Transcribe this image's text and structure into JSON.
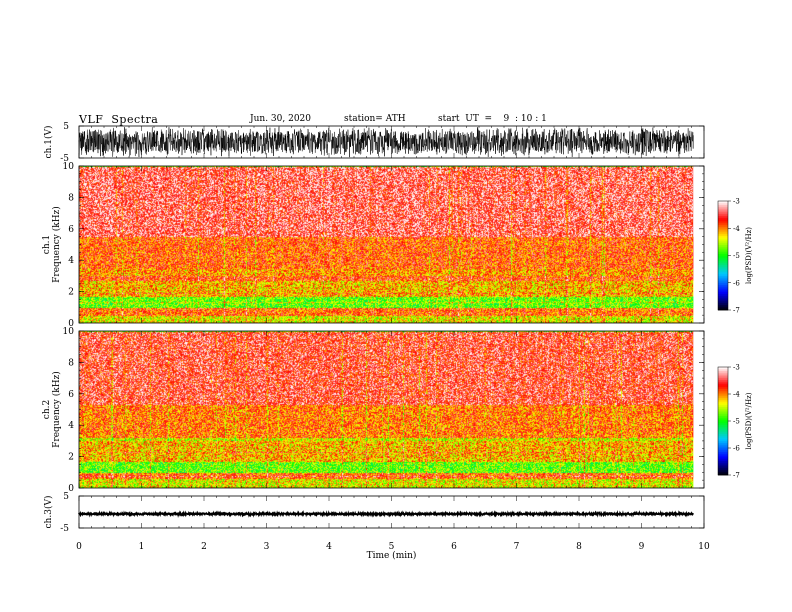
{
  "header": {
    "title": "VLF  Spectra",
    "date": "Jun. 30, 2020",
    "station": "station= ATH",
    "start": "start  UT  =    9  : 10 : 1"
  },
  "colors": {
    "spectrogram_base": "#ff1a1a",
    "waveform": "#000000",
    "axis": "#000000"
  },
  "chart_data": [
    {
      "type": "line",
      "id": "ch1-waveform",
      "ylabel": "ch.1(V)",
      "ylim": [
        -5,
        5
      ],
      "yticks": [
        "5",
        "-5"
      ],
      "xlim": [
        0,
        10
      ],
      "note_values": "dense noise waveform filling nearly the full range",
      "amplitude_fraction": 0.95,
      "duration_min": 9.83
    },
    {
      "type": "heatmap",
      "id": "ch1-spectrogram",
      "channel_label": "ch.1",
      "ylabel": "Frequency  (kHz)",
      "ylim": [
        0,
        10
      ],
      "yticks": [
        "0",
        "2",
        "4",
        "6",
        "8",
        "10"
      ],
      "xlim": [
        0,
        10
      ],
      "duration_min": 9.83,
      "colorbar": {
        "label": "log(PSD)(V²/Hz)",
        "range": [
          -7,
          -3
        ],
        "ticks": [
          "-3",
          "-4",
          "-5",
          "-6",
          "-7"
        ],
        "colors": [
          "#000000",
          "#0000ff",
          "#00c8ff",
          "#00ff00",
          "#ffff00",
          "#ff0000",
          "#ffffff"
        ]
      },
      "bands": [
        {
          "f0": 0,
          "f1": 0.5,
          "level": -4.5
        },
        {
          "f0": 0.5,
          "f1": 1.0,
          "level": -4.0
        },
        {
          "f0": 1.0,
          "f1": 1.7,
          "level": -4.9
        },
        {
          "f0": 1.7,
          "f1": 2.7,
          "level": -4.3
        },
        {
          "f0": 2.7,
          "f1": 3.5,
          "level": -3.9
        },
        {
          "f0": 3.5,
          "f1": 5.5,
          "level": -3.7
        },
        {
          "f0": 5.5,
          "f1": 10,
          "level": -3.3
        }
      ]
    },
    {
      "type": "heatmap",
      "id": "ch2-spectrogram",
      "channel_label": "ch.2",
      "ylabel": "Frequency  (kHz)",
      "ylim": [
        0,
        10
      ],
      "yticks": [
        "0",
        "2",
        "4",
        "6",
        "8",
        "10"
      ],
      "xlim": [
        0,
        10
      ],
      "duration_min": 9.83,
      "colorbar": {
        "label": "log(PSD)(V²/Hz)",
        "range": [
          -7,
          -3
        ],
        "ticks": [
          "-3",
          "-4",
          "-5",
          "-6",
          "-7"
        ],
        "colors": [
          "#000000",
          "#0000ff",
          "#00c8ff",
          "#00ff00",
          "#ffff00",
          "#ff0000",
          "#ffffff"
        ]
      },
      "bands": [
        {
          "f0": 0,
          "f1": 0.6,
          "level": -4.5
        },
        {
          "f0": 0.6,
          "f1": 1.0,
          "level": -4.0
        },
        {
          "f0": 1.0,
          "f1": 1.7,
          "level": -4.9
        },
        {
          "f0": 1.7,
          "f1": 3.2,
          "level": -4.3
        },
        {
          "f0": 3.2,
          "f1": 5.3,
          "level": -3.8
        },
        {
          "f0": 5.3,
          "f1": 10,
          "level": -3.4
        }
      ]
    },
    {
      "type": "line",
      "id": "ch3-waveform",
      "ylabel": "ch.3(V)",
      "ylim": [
        -5,
        5
      ],
      "yticks": [
        "5",
        "-5"
      ],
      "xlim": [
        0,
        10
      ],
      "level_V": -1.2,
      "amplitude_fraction": 0.06,
      "duration_min": 9.83
    }
  ],
  "xaxis": {
    "label": "Time  (min)",
    "ticks": [
      "0",
      "1",
      "2",
      "3",
      "4",
      "5",
      "6",
      "7",
      "8",
      "9",
      "10"
    ]
  }
}
